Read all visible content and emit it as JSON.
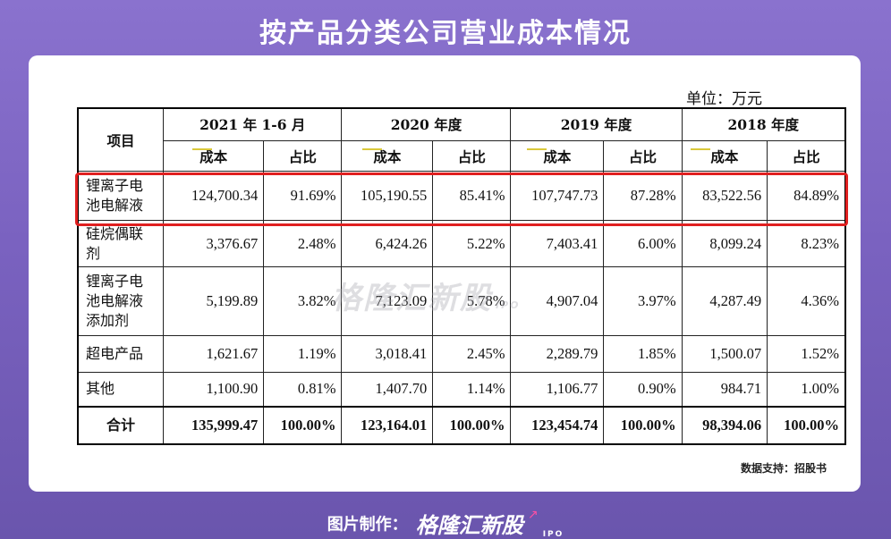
{
  "title": "按产品分类公司营业成本情况",
  "unit": "单位：万元",
  "table": {
    "item_header": "项目",
    "periods": [
      "2021 年 1-6 月",
      "2020 年度",
      "2019 年度",
      "2018 年度"
    ],
    "sub_headers": {
      "cost": "成本",
      "ratio": "占比"
    },
    "rows": [
      {
        "name": "锂离子电池电解液",
        "values": [
          "124,700.34",
          "91.69%",
          "105,190.55",
          "85.41%",
          "107,747.73",
          "87.28%",
          "83,522.56",
          "84.89%"
        ]
      },
      {
        "name": "硅烷偶联剂",
        "values": [
          "3,376.67",
          "2.48%",
          "6,424.26",
          "5.22%",
          "7,403.41",
          "6.00%",
          "8,099.24",
          "8.23%"
        ]
      },
      {
        "name": "锂离子电池电解液添加剂",
        "values": [
          "5,199.89",
          "3.82%",
          "7,123.09",
          "5.78%",
          "4,907.04",
          "3.97%",
          "4,287.49",
          "4.36%"
        ]
      },
      {
        "name": "超电产品",
        "values": [
          "1,621.67",
          "1.19%",
          "3,018.41",
          "2.45%",
          "2,289.79",
          "1.85%",
          "1,500.07",
          "1.52%"
        ]
      },
      {
        "name": "其他",
        "values": [
          "1,100.90",
          "0.81%",
          "1,407.70",
          "1.14%",
          "1,106.77",
          "0.90%",
          "984.71",
          "1.00%"
        ]
      }
    ],
    "total": {
      "name": "合计",
      "values": [
        "135,999.47",
        "100.00%",
        "123,164.01",
        "100.00%",
        "123,454.74",
        "100.00%",
        "98,394.06",
        "100.00%"
      ]
    }
  },
  "watermark": {
    "text": "格隆汇新股",
    "tag": "IPO"
  },
  "source": "数据支持：招股书",
  "footer": {
    "label": "图片制作：",
    "brand": "格隆汇新股",
    "tag": "IPO"
  },
  "colors": {
    "highlight": "#e02020",
    "background": "#7a62c0",
    "brand_arrow": "#ff4fa3"
  }
}
